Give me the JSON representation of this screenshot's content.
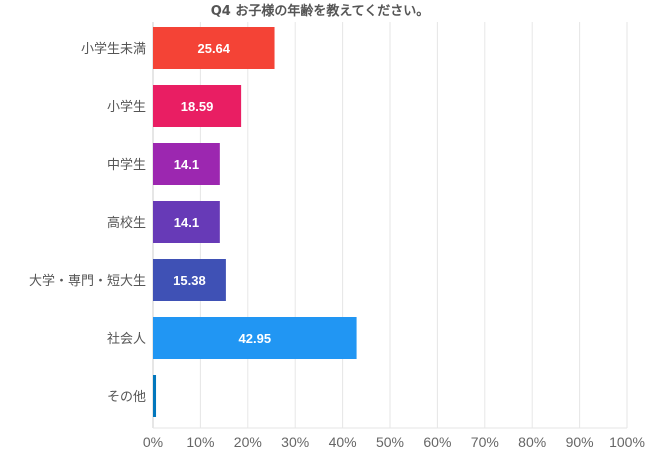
{
  "chart_data": {
    "type": "bar",
    "orientation": "horizontal",
    "title": "Q4 お子様の年齢を教えてください。",
    "categories": [
      "小学生未満",
      "小学生",
      "中学生",
      "高校生",
      "大学・専門・短大生",
      "社会人",
      "その他"
    ],
    "values": [
      25.64,
      18.59,
      14.1,
      14.1,
      15.38,
      42.95,
      0.64
    ],
    "data_labels": [
      "25.64",
      "18.59",
      "14.1",
      "14.1",
      "15.38",
      "42.95",
      ""
    ],
    "colors": [
      "#f44336",
      "#e91e63",
      "#9c27b0",
      "#673ab7",
      "#3f51b5",
      "#2196f3",
      "#0277bd"
    ],
    "xlim": [
      0,
      100
    ],
    "xticks": [
      "0%",
      "10%",
      "20%",
      "30%",
      "40%",
      "50%",
      "60%",
      "70%",
      "80%",
      "90%",
      "100%"
    ],
    "grid": true,
    "legend": "none"
  }
}
